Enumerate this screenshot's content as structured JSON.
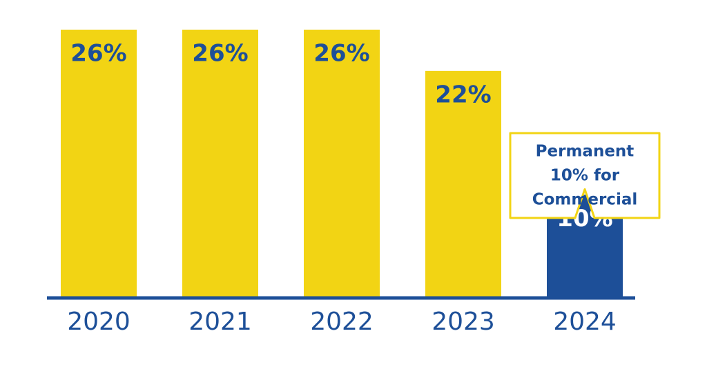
{
  "chart_data": {
    "type": "bar",
    "categories": [
      "2020",
      "2021",
      "2022",
      "2023",
      "2024"
    ],
    "values": [
      26,
      26,
      26,
      22,
      10
    ],
    "value_labels": [
      "26%",
      "26%",
      "26%",
      "22%",
      "10%"
    ],
    "colors": [
      "#f2d414",
      "#f2d414",
      "#f2d414",
      "#f2d414",
      "#1d4f98"
    ],
    "axis_color": "#1d4f98",
    "ylim": [
      0,
      26
    ],
    "annotation": {
      "lines": [
        "Permanent",
        "10% for",
        "Commercial"
      ],
      "category": 4
    }
  }
}
